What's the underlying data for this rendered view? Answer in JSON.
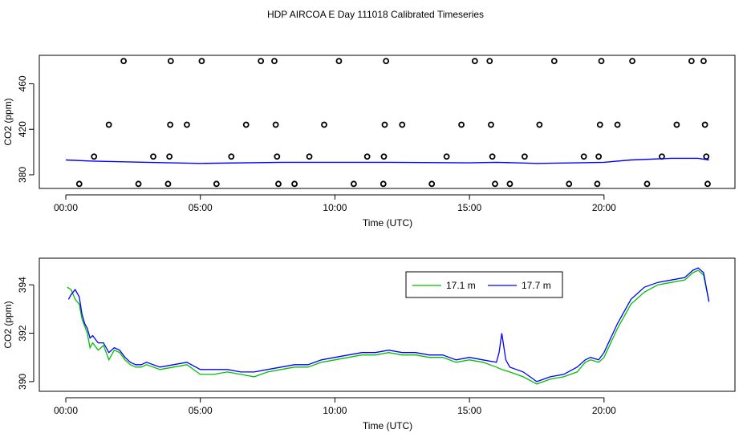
{
  "title": "HDP AIRCOA E  Day 111018  Calibrated Timeseries",
  "colors": {
    "series1": "#00c000",
    "series2": "#0000ff",
    "axis": "#000000"
  },
  "chart_data": [
    {
      "type": "scatter",
      "xlabel": "Time (UTC)",
      "ylabel": "CO2 (ppm)",
      "xlim": [
        0,
        24
      ],
      "ylim": [
        368,
        485
      ],
      "x_ticks": [
        {
          "v": 0,
          "label": "00:00"
        },
        {
          "v": 5,
          "label": "05:00"
        },
        {
          "v": 10,
          "label": "10:00"
        },
        {
          "v": 15,
          "label": "15:00"
        },
        {
          "v": 20,
          "label": "20:00"
        }
      ],
      "y_ticks": [
        {
          "v": 380,
          "label": "380"
        },
        {
          "v": 420,
          "label": "420"
        },
        {
          "v": 460,
          "label": "460"
        }
      ],
      "circles": [
        [
          0.5,
          372
        ],
        [
          1.05,
          396
        ],
        [
          1.6,
          424
        ],
        [
          2.15,
          480
        ],
        [
          2.7,
          372
        ],
        [
          3.25,
          396
        ],
        [
          3.8,
          372
        ],
        [
          3.85,
          396
        ],
        [
          3.88,
          424
        ],
        [
          3.9,
          480
        ],
        [
          4.5,
          424
        ],
        [
          5.05,
          480
        ],
        [
          5.6,
          372
        ],
        [
          6.15,
          396
        ],
        [
          6.7,
          424
        ],
        [
          7.25,
          480
        ],
        [
          7.75,
          480
        ],
        [
          7.8,
          424
        ],
        [
          7.85,
          396
        ],
        [
          7.9,
          372
        ],
        [
          8.5,
          372
        ],
        [
          9.05,
          396
        ],
        [
          9.6,
          424
        ],
        [
          10.15,
          480
        ],
        [
          10.7,
          372
        ],
        [
          11.2,
          396
        ],
        [
          11.8,
          372
        ],
        [
          11.82,
          396
        ],
        [
          11.85,
          424
        ],
        [
          11.9,
          480
        ],
        [
          12.5,
          424
        ],
        [
          13.6,
          372
        ],
        [
          14.15,
          396
        ],
        [
          14.7,
          424
        ],
        [
          15.2,
          480
        ],
        [
          15.75,
          480
        ],
        [
          15.8,
          424
        ],
        [
          15.85,
          396
        ],
        [
          15.95,
          372
        ],
        [
          16.5,
          372
        ],
        [
          17.05,
          396
        ],
        [
          17.6,
          424
        ],
        [
          18.15,
          480
        ],
        [
          18.7,
          372
        ],
        [
          19.25,
          396
        ],
        [
          19.75,
          372
        ],
        [
          19.8,
          396
        ],
        [
          19.85,
          424
        ],
        [
          19.9,
          480
        ],
        [
          20.5,
          424
        ],
        [
          21.05,
          480
        ],
        [
          21.6,
          372
        ],
        [
          22.15,
          396
        ],
        [
          22.7,
          424
        ],
        [
          23.25,
          480
        ],
        [
          23.7,
          480
        ],
        [
          23.75,
          424
        ],
        [
          23.8,
          396
        ],
        [
          23.85,
          372
        ]
      ],
      "line": [
        [
          0,
          393
        ],
        [
          1,
          392
        ],
        [
          3,
          391
        ],
        [
          5,
          390
        ],
        [
          8,
          391
        ],
        [
          10,
          391
        ],
        [
          12,
          391
        ],
        [
          15,
          390.5
        ],
        [
          16,
          391
        ],
        [
          17.5,
          390
        ],
        [
          19,
          390.5
        ],
        [
          20,
          391
        ],
        [
          21,
          393
        ],
        [
          22.5,
          394.5
        ],
        [
          23.5,
          394.5
        ],
        [
          23.9,
          393
        ]
      ]
    },
    {
      "type": "line",
      "xlabel": "Time (UTC)",
      "ylabel": "CO2 (ppm)",
      "xlim": [
        0,
        24
      ],
      "ylim": [
        389.6,
        395.1
      ],
      "x_ticks": [
        {
          "v": 0,
          "label": "00:00"
        },
        {
          "v": 5,
          "label": "05:00"
        },
        {
          "v": 10,
          "label": "10:00"
        },
        {
          "v": 15,
          "label": "15:00"
        },
        {
          "v": 20,
          "label": "20:00"
        }
      ],
      "y_ticks": [
        {
          "v": 390,
          "label": "390"
        },
        {
          "v": 392,
          "label": "392"
        },
        {
          "v": 394,
          "label": "394"
        }
      ],
      "legend": {
        "position": "top-right"
      },
      "series": [
        {
          "name": "17.1 m",
          "x": [
            0.05,
            0.2,
            0.35,
            0.5,
            0.6,
            0.7,
            0.8,
            0.9,
            1.0,
            1.2,
            1.4,
            1.6,
            1.8,
            2.0,
            2.2,
            2.4,
            2.6,
            2.8,
            3.0,
            3.5,
            4.0,
            4.5,
            5.0,
            5.5,
            6.0,
            6.5,
            7.0,
            7.5,
            8.0,
            8.5,
            9.0,
            9.5,
            10.0,
            10.5,
            11.0,
            11.5,
            12.0,
            12.5,
            13.0,
            13.5,
            14.0,
            14.5,
            15.0,
            15.5,
            16.0,
            16.2,
            16.5,
            17.0,
            17.5,
            18.0,
            18.5,
            19.0,
            19.3,
            19.5,
            19.8,
            20.0,
            20.5,
            21.0,
            21.5,
            22.0,
            22.5,
            23.0,
            23.3,
            23.5,
            23.7,
            23.9
          ],
          "values": [
            393.9,
            393.8,
            393.4,
            393.2,
            392.6,
            392.3,
            392.0,
            391.4,
            391.6,
            391.3,
            391.5,
            390.9,
            391.3,
            391.2,
            390.9,
            390.7,
            390.6,
            390.6,
            390.7,
            390.5,
            390.6,
            390.7,
            390.3,
            390.3,
            390.4,
            390.3,
            390.2,
            390.4,
            390.5,
            390.6,
            390.6,
            390.8,
            390.9,
            391.0,
            391.1,
            391.1,
            391.2,
            391.1,
            391.1,
            391.0,
            391.0,
            390.8,
            390.9,
            390.8,
            390.6,
            390.5,
            390.4,
            390.2,
            389.9,
            390.1,
            390.2,
            390.4,
            390.8,
            390.9,
            390.8,
            391.0,
            392.2,
            393.2,
            393.7,
            394.0,
            394.1,
            394.2,
            394.5,
            394.6,
            394.4,
            393.3
          ]
        },
        {
          "name": "17.7 m",
          "x": [
            0.1,
            0.2,
            0.35,
            0.5,
            0.6,
            0.7,
            0.8,
            0.9,
            1.0,
            1.2,
            1.4,
            1.6,
            1.8,
            2.0,
            2.2,
            2.4,
            2.6,
            2.8,
            3.0,
            3.5,
            4.0,
            4.5,
            5.0,
            5.5,
            6.0,
            6.5,
            7.0,
            7.5,
            8.0,
            8.5,
            9.0,
            9.5,
            10.0,
            10.5,
            11.0,
            11.5,
            12.0,
            12.5,
            13.0,
            13.5,
            14.0,
            14.5,
            15.0,
            15.5,
            16.0,
            16.1,
            16.2,
            16.35,
            16.5,
            17.0,
            17.5,
            18.0,
            18.5,
            19.0,
            19.3,
            19.5,
            19.8,
            20.0,
            20.5,
            21.0,
            21.5,
            22.0,
            22.5,
            23.0,
            23.3,
            23.5,
            23.7,
            23.9
          ],
          "values": [
            393.4,
            393.6,
            393.8,
            393.5,
            392.8,
            392.4,
            392.2,
            391.8,
            391.9,
            391.6,
            391.6,
            391.2,
            391.4,
            391.3,
            391.0,
            390.8,
            390.7,
            390.7,
            390.8,
            390.6,
            390.7,
            390.8,
            390.5,
            390.5,
            390.5,
            390.4,
            390.4,
            390.5,
            390.6,
            390.7,
            390.7,
            390.9,
            391.0,
            391.1,
            391.2,
            391.2,
            391.3,
            391.2,
            391.2,
            391.1,
            391.1,
            390.9,
            391.0,
            390.9,
            390.8,
            391.2,
            392.0,
            390.9,
            390.6,
            390.4,
            390.0,
            390.2,
            390.3,
            390.6,
            390.9,
            391.0,
            390.9,
            391.2,
            392.4,
            393.4,
            393.9,
            394.1,
            394.2,
            394.3,
            394.6,
            394.7,
            394.5,
            393.3
          ]
        }
      ]
    }
  ]
}
